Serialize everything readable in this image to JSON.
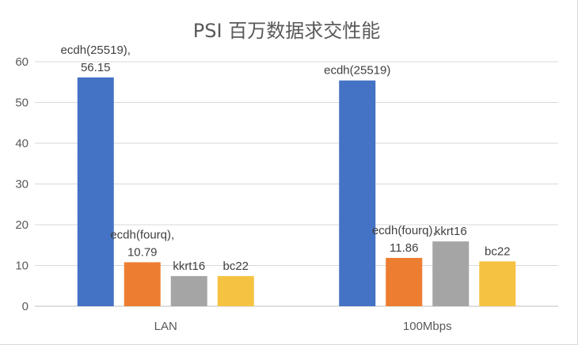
{
  "chart_data": {
    "type": "bar",
    "title": "PSI  百万数据求交性能",
    "xlabel": "",
    "ylabel": "",
    "ylim": [
      0,
      60
    ],
    "yticks": [
      0,
      10,
      20,
      30,
      40,
      50,
      60
    ],
    "grid": true,
    "legend": "none",
    "categories": [
      "LAN",
      "100Mbps"
    ],
    "series": [
      {
        "name": "ecdh(25519)",
        "color": "#4472C4",
        "values": [
          56.15,
          55.4
        ]
      },
      {
        "name": "ecdh(fourq)",
        "color": "#ED7D31",
        "values": [
          10.79,
          11.86
        ]
      },
      {
        "name": "kkrt16",
        "color": "#A5A5A5",
        "values": [
          7.4,
          15.9
        ]
      },
      {
        "name": "bc22",
        "color": "#F5C242",
        "values": [
          7.4,
          11.0
        ]
      }
    ],
    "data_labels": [
      [
        "ecdh(25519),\n56.15",
        "ecdh(fourq),\n10.79",
        "kkrt16",
        "bc22"
      ],
      [
        "ecdh(25519)",
        "ecdh(fourq),\n11.86",
        "kkrt16",
        "bc22"
      ]
    ]
  }
}
